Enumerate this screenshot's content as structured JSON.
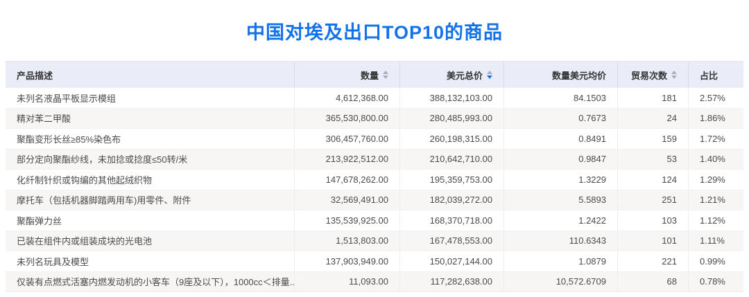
{
  "page": {
    "title": "中国对埃及出口TOP10的商品"
  },
  "colors": {
    "accent_blue": "#1472e8",
    "header_bg": "#eaecf8",
    "row_alt_bg": "#f7f6f4"
  },
  "table": {
    "columns": [
      {
        "label": "产品描述",
        "align": "left",
        "sortable": false,
        "sort": "none"
      },
      {
        "label": "数量",
        "align": "right",
        "sortable": true,
        "sort": "none"
      },
      {
        "label": "美元总价",
        "align": "right",
        "sortable": true,
        "sort": "desc"
      },
      {
        "label": "数量美元均价",
        "align": "right",
        "sortable": false,
        "sort": "none"
      },
      {
        "label": "贸易次数",
        "align": "right",
        "sortable": true,
        "sort": "none"
      },
      {
        "label": "占比",
        "align": "left",
        "sortable": false,
        "sort": "none"
      }
    ],
    "rows": [
      [
        "未列名液晶平板显示模组",
        "4,612,368.00",
        "388,132,103.00",
        "84.1503",
        "181",
        "2.57%"
      ],
      [
        "精对苯二甲酸",
        "365,530,800.00",
        "280,485,993.00",
        "0.7673",
        "24",
        "1.86%"
      ],
      [
        "聚酯变形长丝≥85%染色布",
        "306,457,760.00",
        "260,198,315.00",
        "0.8491",
        "159",
        "1.72%"
      ],
      [
        "部分定向聚酯纱线，未加捻或捻度≤50转/米",
        "213,922,512.00",
        "210,642,710.00",
        "0.9847",
        "53",
        "1.40%"
      ],
      [
        "化纤制针织或钩编的其他起绒织物",
        "147,678,262.00",
        "195,359,753.00",
        "1.3229",
        "124",
        "1.29%"
      ],
      [
        "摩托车（包括机器脚踏两用车)用零件、附件",
        "32,569,491.00",
        "182,039,272.00",
        "5.5893",
        "251",
        "1.21%"
      ],
      [
        "聚酯弹力丝",
        "135,539,925.00",
        "168,370,718.00",
        "1.2422",
        "103",
        "1.12%"
      ],
      [
        "已装在组件内或组装成块的光电池",
        "1,513,803.00",
        "167,478,553.00",
        "110.6343",
        "101",
        "1.11%"
      ],
      [
        "未列名玩具及模型",
        "137,903,949.00",
        "150,027,144.00",
        "1.0879",
        "221",
        "0.99%"
      ],
      [
        "仅装有点燃式活塞内燃发动机的小客车（9座及以下），1000cc＜排量...",
        "11,093.00",
        "117,282,638.00",
        "10,572.6709",
        "68",
        "0.78%"
      ]
    ]
  }
}
